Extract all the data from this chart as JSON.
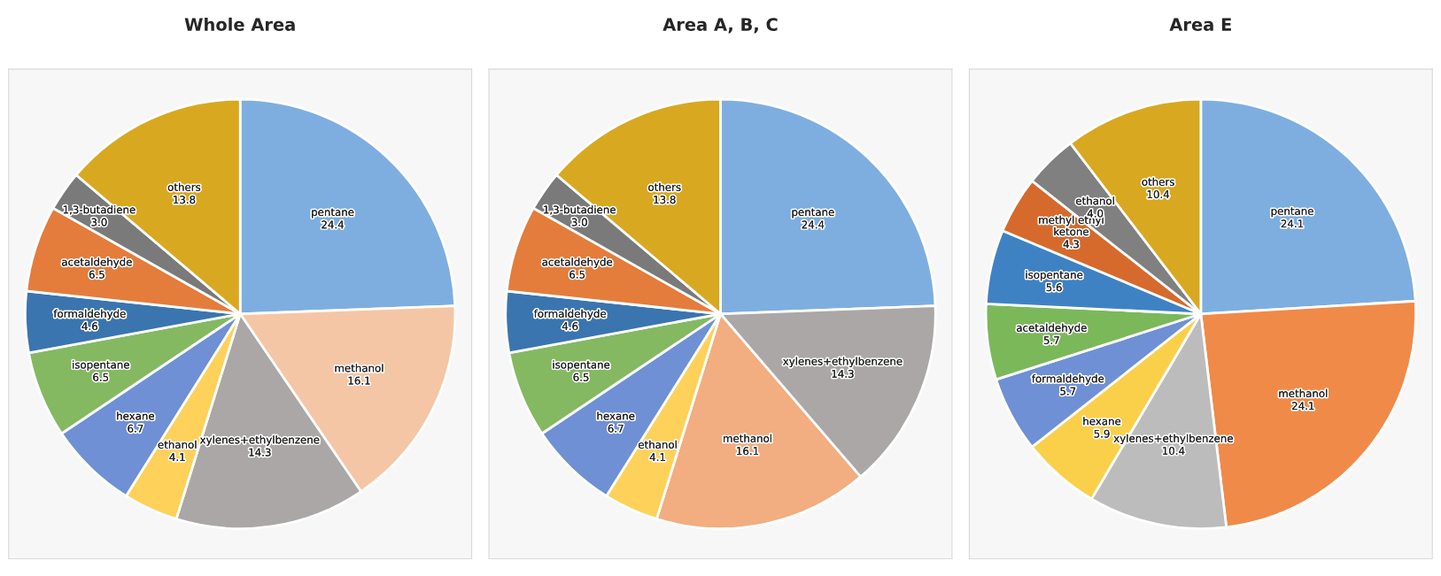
{
  "chart_data": [
    {
      "type": "pie",
      "title": "Whole Area",
      "categories": [
        "pentane",
        "methanol",
        "xylenes+ethylbenzene",
        "ethanol",
        "hexane",
        "isopentane",
        "formaldehyde",
        "acetaldehyde",
        "1,3-butadiene",
        "others"
      ],
      "values": [
        24.4,
        16.1,
        14.3,
        4.1,
        6.7,
        6.5,
        4.6,
        6.5,
        3.0,
        13.8
      ],
      "colors": [
        "#7eaee0",
        "#f5c6a5",
        "#aaa7a6",
        "#fdd15a",
        "#6f90d4",
        "#84b962",
        "#3a75b0",
        "#e47c3c",
        "#7a7a7a",
        "#d8a820"
      ],
      "value_labels": [
        "24.4",
        "16.1",
        "14.3",
        "4.1",
        "6.7",
        "6.5",
        "4.6",
        "6.5",
        "3.0",
        "13.8"
      ]
    },
    {
      "type": "pie",
      "title": "Area A, B, C",
      "categories": [
        "pentane",
        "xylenes+ethylbenzene",
        "methanol",
        "ethanol",
        "hexane",
        "isopentane",
        "formaldehyde",
        "acetaldehyde",
        "1,3-butadiene",
        "others"
      ],
      "values": [
        24.4,
        14.3,
        16.1,
        4.1,
        6.7,
        6.5,
        4.6,
        6.5,
        3.0,
        13.8
      ],
      "colors": [
        "#7eaee0",
        "#aaa7a6",
        "#f2ad80",
        "#fdd15a",
        "#6f90d4",
        "#84b962",
        "#3a75b0",
        "#e47c3c",
        "#7a7a7a",
        "#d8a820"
      ],
      "value_labels": [
        "24.4",
        "14.3",
        "16.1",
        "4.1",
        "6.7",
        "6.5",
        "4.6",
        "6.5",
        "3.0",
        "13.8"
      ]
    },
    {
      "type": "pie",
      "title": "Area E",
      "categories": [
        "pentane",
        "methanol",
        "xylenes+ethylbenzene",
        "hexane",
        "formaldehyde",
        "acetaldehyde",
        "isopentane",
        "methyl ethyl ketone",
        "ethanol",
        "others"
      ],
      "values": [
        24.1,
        24.1,
        10.4,
        5.9,
        5.7,
        5.7,
        5.6,
        4.3,
        4.0,
        10.4
      ],
      "colors": [
        "#7eaee0",
        "#f08a48",
        "#bcbcbc",
        "#fad04a",
        "#6f90d4",
        "#7bb85a",
        "#3f82c4",
        "#d66a2c",
        "#808080",
        "#d8a820"
      ],
      "value_labels": [
        "24.1",
        "24.1",
        "10.4",
        "5.9",
        "5.7",
        "5.7",
        "5.6",
        "4.3",
        "4.0",
        "10.4"
      ]
    }
  ]
}
